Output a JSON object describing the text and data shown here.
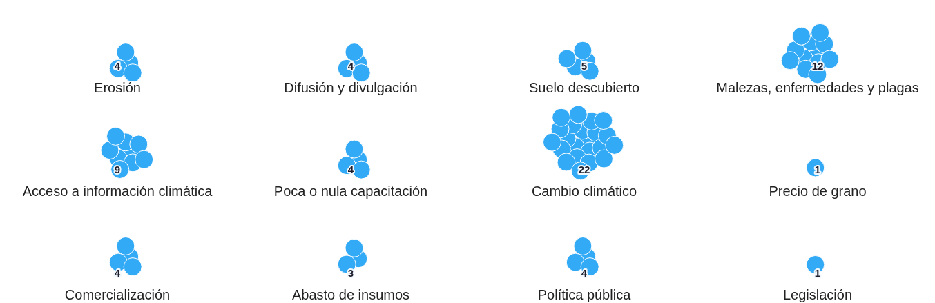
{
  "chart_data": {
    "type": "other",
    "categories": [
      "Erosión",
      "Difusión y divulgación",
      "Suelo descubierto",
      "Malezas, enfermedades y plagas",
      "Acceso a información climática",
      "Poca o nula capacitación",
      "Cambio climático",
      "Precio de grano",
      "Comercialización",
      "Abasto de insumos",
      "Política pública",
      "Legislación"
    ],
    "values": [
      4,
      4,
      5,
      12,
      9,
      4,
      22,
      1,
      4,
      3,
      4,
      1
    ],
    "color": "#33aaf5",
    "data_labels": true,
    "legend": false
  }
}
